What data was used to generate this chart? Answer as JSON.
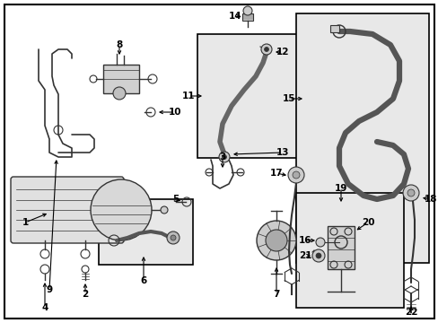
{
  "bg": "#ffffff",
  "pc": "#333333",
  "box_fill": "#e8e8e8",
  "lw_hose": 2.5,
  "lw_part": 1.0,
  "figsize": [
    4.89,
    3.6
  ],
  "dpi": 100
}
